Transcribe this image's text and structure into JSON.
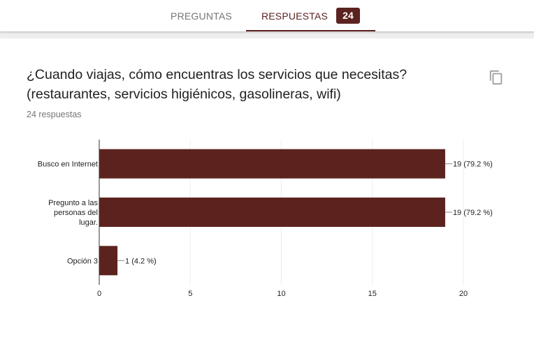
{
  "tabs": {
    "questions_label": "PREGUNTAS",
    "responses_label": "RESPUESTAS",
    "responses_count": "24"
  },
  "question": {
    "title": "¿Cuando viajas, cómo encuentras los servicios que necesitas? (restaurantes, servicios higiénicos, gasolineras, wifi)",
    "response_count_text": "24 respuestas"
  },
  "icons": {
    "copy": "copy-icon"
  },
  "colors": {
    "accent": "#5b2320",
    "bar": "#5c231e"
  },
  "chart_data": {
    "type": "bar",
    "orientation": "horizontal",
    "title": "",
    "xlabel": "",
    "ylabel": "",
    "categories": [
      [
        "Busco en Internet"
      ],
      [
        "Pregunto a las",
        "personas del",
        "lugar."
      ],
      [
        "Opción 3"
      ]
    ],
    "values": [
      19,
      19,
      1
    ],
    "data_labels": [
      "19 (79.2 %)",
      "19 (79.2 %)",
      "1 (4.2 %)"
    ],
    "xlim": [
      0,
      20
    ],
    "xticks": [
      0,
      5,
      10,
      15,
      20
    ],
    "xtick_labels": [
      "0",
      "5",
      "10",
      "15",
      "20"
    ],
    "grid": true,
    "legend": "none"
  }
}
